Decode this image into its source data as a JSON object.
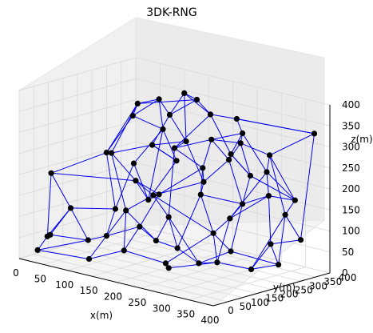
{
  "chart_data": {
    "type": "scatter",
    "projection": "3d",
    "title": "3DK-RNG",
    "xlabel": "x(m)",
    "ylabel": "y(m)",
    "zlabel": "z(m)",
    "xlim": [
      0,
      400
    ],
    "ylim": [
      0,
      400
    ],
    "zlim": [
      0,
      400
    ],
    "x_ticks": [
      "0",
      "50",
      "100",
      "150",
      "200",
      "250",
      "300",
      "350",
      "400"
    ],
    "y_ticks": [
      "0",
      "50",
      "100",
      "150",
      "200",
      "250",
      "300",
      "350",
      "400"
    ],
    "z_ticks": [
      "0",
      "50",
      "100",
      "150",
      "200",
      "250",
      "300",
      "350",
      "400"
    ],
    "grid": true,
    "node_color": "#000000",
    "edge_color": "#0000ee",
    "nodes": [
      [
        10,
        80,
        40
      ],
      [
        20,
        30,
        20
      ],
      [
        40,
        40,
        60
      ],
      [
        70,
        120,
        40
      ],
      [
        120,
        40,
        25
      ],
      [
        150,
        110,
        40
      ],
      [
        90,
        150,
        50
      ],
      [
        140,
        180,
        80
      ],
      [
        180,
        170,
        60
      ],
      [
        200,
        210,
        40
      ],
      [
        230,
        120,
        30
      ],
      [
        250,
        200,
        20
      ],
      [
        280,
        260,
        45
      ],
      [
        260,
        80,
        35
      ],
      [
        300,
        180,
        40
      ],
      [
        340,
        230,
        25
      ],
      [
        360,
        290,
        30
      ],
      [
        320,
        330,
        60
      ],
      [
        370,
        350,
        80
      ],
      [
        60,
        230,
        90
      ],
      [
        40,
        110,
        110
      ],
      [
        110,
        260,
        120
      ],
      [
        150,
        230,
        150
      ],
      [
        180,
        160,
        170
      ],
      [
        200,
        300,
        180
      ],
      [
        230,
        240,
        170
      ],
      [
        280,
        300,
        150
      ],
      [
        310,
        340,
        170
      ],
      [
        340,
        380,
        160
      ],
      [
        260,
        360,
        200
      ],
      [
        30,
        60,
        200
      ],
      [
        60,
        200,
        230
      ],
      [
        100,
        150,
        250
      ],
      [
        130,
        240,
        260
      ],
      [
        170,
        290,
        270
      ],
      [
        200,
        200,
        280
      ],
      [
        240,
        260,
        300
      ],
      [
        270,
        310,
        290
      ],
      [
        300,
        360,
        260
      ],
      [
        330,
        300,
        240
      ],
      [
        60,
        290,
        300
      ],
      [
        90,
        330,
        340
      ],
      [
        130,
        300,
        320
      ],
      [
        150,
        360,
        350
      ],
      [
        190,
        340,
        330
      ],
      [
        220,
        380,
        320
      ],
      [
        250,
        350,
        300
      ],
      [
        100,
        240,
        350
      ],
      [
        160,
        300,
        380
      ],
      [
        210,
        280,
        220
      ],
      [
        120,
        340,
        200
      ],
      [
        240,
        320,
        240
      ],
      [
        80,
        360,
        260
      ],
      [
        200,
        180,
        120
      ],
      [
        160,
        100,
        140
      ],
      [
        290,
        240,
        130
      ],
      [
        120,
        200,
        180
      ],
      [
        220,
        360,
        240
      ],
      [
        320,
        380,
        120
      ],
      [
        380,
        380,
        330
      ],
      [
        280,
        200,
        100
      ],
      [
        50,
        310,
        180
      ]
    ],
    "edges": [
      [
        0,
        1
      ],
      [
        0,
        2
      ],
      [
        1,
        4
      ],
      [
        2,
        3
      ],
      [
        3,
        6
      ],
      [
        4,
        5
      ],
      [
        5,
        10
      ],
      [
        6,
        7
      ],
      [
        7,
        8
      ],
      [
        8,
        9
      ],
      [
        9,
        11
      ],
      [
        10,
        13
      ],
      [
        11,
        12
      ],
      [
        12,
        16
      ],
      [
        13,
        14
      ],
      [
        14,
        15
      ],
      [
        15,
        16
      ],
      [
        16,
        17
      ],
      [
        17,
        18
      ],
      [
        19,
        20
      ],
      [
        20,
        0
      ],
      [
        19,
        6
      ],
      [
        21,
        22
      ],
      [
        22,
        23
      ],
      [
        23,
        24
      ],
      [
        24,
        25
      ],
      [
        25,
        26
      ],
      [
        26,
        27
      ],
      [
        27,
        28
      ],
      [
        28,
        29
      ],
      [
        29,
        26
      ],
      [
        30,
        20
      ],
      [
        30,
        31
      ],
      [
        31,
        32
      ],
      [
        32,
        33
      ],
      [
        33,
        34
      ],
      [
        34,
        35
      ],
      [
        35,
        36
      ],
      [
        36,
        37
      ],
      [
        37,
        38
      ],
      [
        38,
        39
      ],
      [
        39,
        28
      ],
      [
        40,
        31
      ],
      [
        40,
        41
      ],
      [
        41,
        42
      ],
      [
        42,
        43
      ],
      [
        43,
        44
      ],
      [
        44,
        45
      ],
      [
        45,
        46
      ],
      [
        46,
        37
      ],
      [
        47,
        41
      ],
      [
        47,
        32
      ],
      [
        48,
        43
      ],
      [
        48,
        44
      ],
      [
        49,
        24
      ],
      [
        49,
        35
      ],
      [
        50,
        21
      ],
      [
        50,
        33
      ],
      [
        51,
        36
      ],
      [
        51,
        26
      ],
      [
        52,
        40
      ],
      [
        52,
        21
      ],
      [
        53,
        8
      ],
      [
        53,
        23
      ],
      [
        54,
        5
      ],
      [
        54,
        23
      ],
      [
        55,
        14
      ],
      [
        55,
        27
      ],
      [
        56,
        22
      ],
      [
        56,
        32
      ],
      [
        57,
        29
      ],
      [
        57,
        46
      ],
      [
        58,
        18
      ],
      [
        58,
        28
      ],
      [
        59,
        38
      ],
      [
        59,
        45
      ],
      [
        60,
        14
      ],
      [
        60,
        55
      ],
      [
        61,
        19
      ],
      [
        61,
        52
      ],
      [
        3,
        20
      ],
      [
        7,
        22
      ],
      [
        9,
        53
      ],
      [
        12,
        26
      ],
      [
        15,
        58
      ],
      [
        17,
        27
      ],
      [
        18,
        59
      ],
      [
        19,
        31
      ],
      [
        21,
        61
      ],
      [
        22,
        49
      ],
      [
        23,
        56
      ],
      [
        24,
        34
      ],
      [
        25,
        49
      ],
      [
        26,
        55
      ],
      [
        29,
        57
      ],
      [
        30,
        0
      ],
      [
        31,
        47
      ],
      [
        33,
        50
      ],
      [
        34,
        48
      ],
      [
        35,
        53
      ],
      [
        36,
        46
      ],
      [
        37,
        51
      ],
      [
        39,
        55
      ],
      [
        42,
        48
      ],
      [
        43,
        47
      ],
      [
        44,
        57
      ],
      [
        45,
        59
      ],
      [
        6,
        54
      ],
      [
        10,
        60
      ],
      [
        11,
        53
      ],
      [
        2,
        20
      ],
      [
        8,
        54
      ],
      [
        12,
        60
      ],
      [
        13,
        10
      ],
      [
        16,
        58
      ],
      [
        25,
        60
      ],
      [
        32,
        54
      ],
      [
        35,
        44
      ],
      [
        36,
        49
      ],
      [
        38,
        58
      ],
      [
        40,
        47
      ],
      [
        42,
        33
      ],
      [
        50,
        52
      ],
      [
        51,
        57
      ],
      [
        56,
        21
      ],
      [
        1,
        3
      ],
      [
        4,
        6
      ],
      [
        5,
        7
      ],
      [
        9,
        25
      ],
      [
        11,
        14
      ],
      [
        15,
        17
      ],
      [
        23,
        60
      ],
      [
        24,
        51
      ],
      [
        27,
        39
      ],
      [
        28,
        38
      ],
      [
        29,
        37
      ],
      [
        30,
        56
      ],
      [
        34,
        42
      ],
      [
        41,
        52
      ],
      [
        46,
        39
      ]
    ]
  }
}
